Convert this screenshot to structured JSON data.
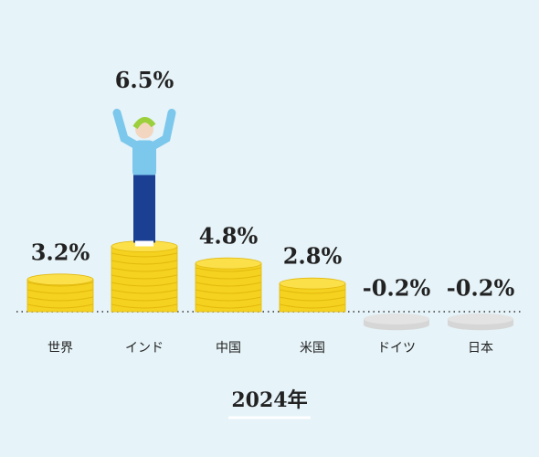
{
  "chart_data": {
    "type": "coin-stack",
    "title": "2024年",
    "categories": [
      "世界",
      "インド",
      "中国",
      "米国",
      "ドイツ",
      "日本"
    ],
    "values": [
      3.2,
      6.5,
      4.8,
      2.8,
      -0.2,
      -0.2
    ],
    "value_labels": [
      "3.2%",
      "6.5%",
      "4.8%",
      "2.8%",
      "-0.2%",
      "-0.2%"
    ],
    "color": "#f5d21f",
    "negative_color": "#d6d6d6"
  }
}
